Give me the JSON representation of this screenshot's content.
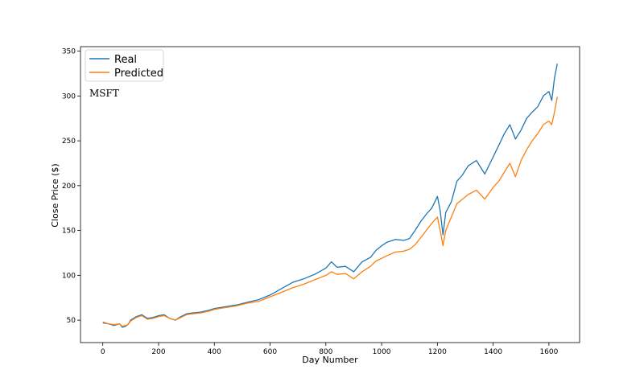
{
  "chart_data": {
    "type": "line",
    "title": "",
    "annotation": "MSFT",
    "xlabel": "Day Number",
    "ylabel": "Close Price ($)",
    "xlim": [
      -80,
      1710
    ],
    "ylim": [
      25,
      355
    ],
    "xticks": [
      0,
      200,
      400,
      600,
      800,
      1000,
      1200,
      1400,
      1600
    ],
    "yticks": [
      50,
      100,
      150,
      200,
      250,
      300,
      350
    ],
    "grid": false,
    "legend": "upper-left",
    "series": [
      {
        "name": "Real",
        "color": "#1f77b4",
        "x": [
          0,
          20,
          40,
          60,
          70,
          80,
          90,
          100,
          120,
          140,
          160,
          180,
          200,
          220,
          240,
          260,
          280,
          300,
          320,
          350,
          380,
          400,
          440,
          480,
          520,
          560,
          600,
          640,
          680,
          720,
          760,
          800,
          820,
          840,
          870,
          900,
          930,
          960,
          980,
          1000,
          1020,
          1050,
          1080,
          1100,
          1120,
          1140,
          1160,
          1180,
          1200,
          1210,
          1220,
          1230,
          1250,
          1270,
          1290,
          1310,
          1340,
          1370,
          1400,
          1420,
          1440,
          1460,
          1480,
          1500,
          1520,
          1540,
          1560,
          1580,
          1600,
          1610,
          1620,
          1630
        ],
        "y": [
          47,
          46,
          44,
          46,
          42,
          43,
          45,
          50,
          54,
          56,
          52,
          53,
          55,
          56,
          52,
          50,
          54,
          57,
          58,
          59,
          61,
          63,
          65,
          67,
          70,
          73,
          78,
          85,
          92,
          96,
          101,
          108,
          115,
          109,
          110,
          104,
          115,
          120,
          128,
          133,
          137,
          140,
          139,
          141,
          150,
          160,
          168,
          175,
          188,
          172,
          145,
          170,
          182,
          205,
          212,
          222,
          228,
          213,
          232,
          245,
          258,
          268,
          252,
          262,
          275,
          282,
          288,
          300,
          305,
          295,
          320,
          336
        ]
      },
      {
        "name": "Predicted",
        "color": "#ff7f0e",
        "x": [
          0,
          20,
          40,
          60,
          70,
          80,
          90,
          100,
          120,
          140,
          160,
          180,
          200,
          220,
          240,
          260,
          280,
          300,
          320,
          350,
          380,
          400,
          440,
          480,
          520,
          560,
          600,
          640,
          680,
          720,
          760,
          800,
          820,
          840,
          870,
          900,
          930,
          960,
          980,
          1000,
          1020,
          1050,
          1080,
          1100,
          1120,
          1140,
          1160,
          1180,
          1200,
          1210,
          1220,
          1230,
          1250,
          1270,
          1290,
          1310,
          1340,
          1370,
          1400,
          1420,
          1440,
          1460,
          1480,
          1500,
          1520,
          1540,
          1560,
          1580,
          1600,
          1610,
          1620,
          1630
        ],
        "y": [
          48,
          46,
          45,
          46,
          43,
          44,
          45,
          49,
          53,
          55,
          51,
          52,
          54,
          55,
          52,
          50,
          53,
          56,
          57,
          58,
          60,
          62,
          64,
          66,
          69,
          71,
          76,
          81,
          86,
          90,
          95,
          100,
          104,
          101,
          102,
          96,
          104,
          110,
          116,
          119,
          122,
          126,
          127,
          129,
          134,
          142,
          150,
          158,
          165,
          150,
          133,
          150,
          165,
          180,
          185,
          190,
          195,
          185,
          198,
          205,
          215,
          225,
          210,
          228,
          240,
          250,
          258,
          268,
          272,
          268,
          282,
          299
        ]
      }
    ]
  }
}
